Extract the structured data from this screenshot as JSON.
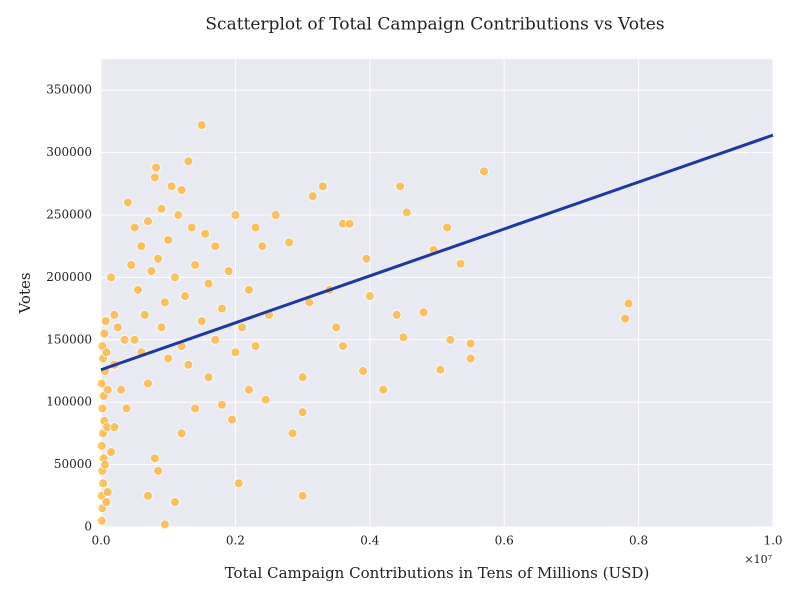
{
  "chart_data": {
    "type": "scatter",
    "title": "Scatterplot of Total Campaign Contributions vs Votes",
    "xlabel": "Total Campaign Contributions in Tens of Millions (USD)",
    "ylabel": "Votes",
    "x_offset_label": "×10⁷",
    "color": "#ffa500",
    "grid": true,
    "xlim": [
      0,
      10000000
    ],
    "ylim": [
      0,
      375000
    ],
    "xticks": [
      {
        "value": 0,
        "label": "0.0"
      },
      {
        "value": 2000000,
        "label": "0.2"
      },
      {
        "value": 4000000,
        "label": "0.4"
      },
      {
        "value": 6000000,
        "label": "0.6"
      },
      {
        "value": 8000000,
        "label": "0.8"
      },
      {
        "value": 10000000,
        "label": "1.0"
      }
    ],
    "yticks": [
      0,
      50000,
      100000,
      150000,
      200000,
      250000,
      300000,
      350000
    ],
    "x": [
      10000,
      20000,
      10000,
      30000,
      20000,
      40000,
      10000,
      30000,
      50000,
      20000,
      40000,
      10000,
      60000,
      30000,
      20000,
      50000,
      70000,
      80000,
      60000,
      90000,
      100000,
      80000,
      150000,
      200000,
      250000,
      300000,
      200000,
      350000,
      150000,
      100000,
      200000,
      380000,
      400000,
      450000,
      500000,
      550000,
      600000,
      650000,
      700000,
      750000,
      800000,
      820000,
      850000,
      900000,
      950000,
      1000000,
      1050000,
      1100000,
      1150000,
      1200000,
      1250000,
      1300000,
      1350000,
      1400000,
      1500000,
      1550000,
      1600000,
      1700000,
      1800000,
      1900000,
      2000000,
      2100000,
      2200000,
      2300000,
      2400000,
      2500000,
      600000,
      700000,
      800000,
      850000,
      950000,
      1100000,
      700000,
      1200000,
      1300000,
      1400000,
      1600000,
      1800000,
      1950000,
      2050000,
      2200000,
      2450000,
      500000,
      900000,
      1000000,
      1200000,
      1500000,
      1700000,
      2000000,
      2300000,
      2600000,
      2800000,
      2850000,
      3000000,
      3000000,
      3000000,
      3100000,
      3150000,
      3300000,
      3400000,
      3500000,
      3600000,
      3700000,
      3600000,
      3900000,
      3950000,
      4000000,
      4200000,
      4400000,
      4450000,
      4500000,
      4550000,
      4800000,
      4950000,
      5050000,
      5150000,
      5200000,
      5350000,
      5500000,
      5500000,
      5700000,
      7800000,
      7850000
    ],
    "values": [
      5000,
      15000,
      25000,
      35000,
      45000,
      55000,
      65000,
      75000,
      85000,
      95000,
      105000,
      115000,
      125000,
      135000,
      145000,
      155000,
      165000,
      20000,
      50000,
      80000,
      110000,
      140000,
      200000,
      130000,
      160000,
      110000,
      80000,
      150000,
      60000,
      28000,
      170000,
      95000,
      260000,
      210000,
      240000,
      190000,
      225000,
      170000,
      245000,
      205000,
      280000,
      288000,
      215000,
      255000,
      180000,
      230000,
      273000,
      200000,
      250000,
      270000,
      185000,
      293000,
      240000,
      210000,
      322000,
      235000,
      195000,
      225000,
      175000,
      205000,
      250000,
      160000,
      190000,
      240000,
      225000,
      170000,
      140000,
      115000,
      55000,
      45000,
      2000,
      20000,
      25000,
      75000,
      130000,
      95000,
      120000,
      98000,
      86000,
      35000,
      110000,
      102000,
      150000,
      160000,
      135000,
      145000,
      165000,
      150000,
      140000,
      145000,
      250000,
      228000,
      75000,
      25000,
      92000,
      120000,
      180000,
      265000,
      273000,
      190000,
      160000,
      243000,
      243000,
      145000,
      125000,
      215000,
      185000,
      110000,
      170000,
      273000,
      152000,
      252000,
      172000,
      222000,
      126000,
      240000,
      150000,
      211000,
      147000,
      135000,
      285000,
      167000,
      179000
    ],
    "trend_line": {
      "x": [
        0,
        10000000
      ],
      "values": [
        126000,
        314000
      ],
      "color": "#1f38a0"
    }
  }
}
